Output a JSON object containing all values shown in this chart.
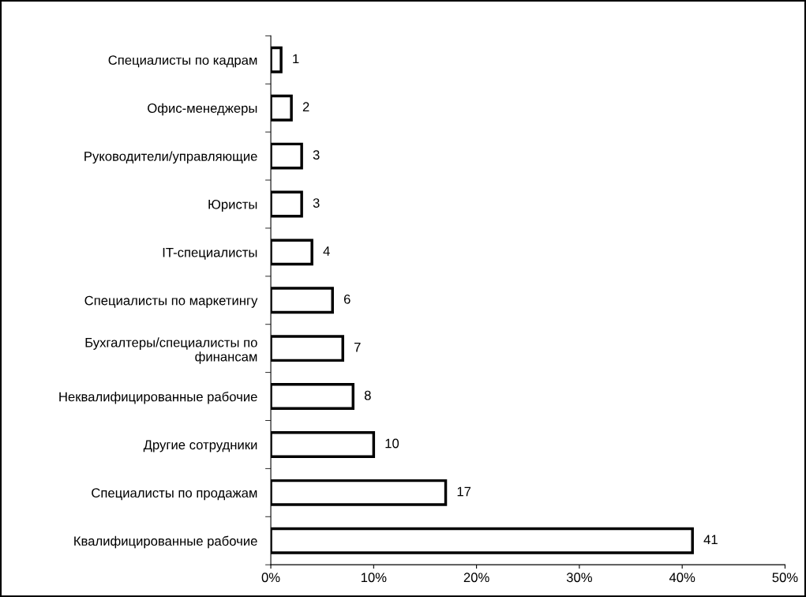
{
  "chart_data": {
    "type": "bar",
    "orientation": "horizontal",
    "categories": [
      "Специалисты по кадрам",
      "Офис-менеджеры",
      "Руководители/управляющие",
      "Юристы",
      "IT-специалисты",
      "Специалисты по маркетингу",
      "Бухгалтеры/специалисты по\nфинансам",
      "Неквалифицированные рабочие",
      "Другие сотрудники",
      "Специалисты по продажам",
      "Квалифицированные рабочие"
    ],
    "values": [
      1,
      2,
      3,
      3,
      4,
      6,
      7,
      8,
      10,
      17,
      41
    ],
    "color": "#ffffff",
    "xlim": [
      0,
      50
    ],
    "xticks": [
      {
        "value": 0,
        "label": "0%"
      },
      {
        "value": 10,
        "label": "10%"
      },
      {
        "value": 20,
        "label": "20%"
      },
      {
        "value": 30,
        "label": "30%"
      },
      {
        "value": 40,
        "label": "40%"
      },
      {
        "value": 50,
        "label": "50%"
      }
    ],
    "data_labels": true,
    "grid": false,
    "legend": false
  }
}
